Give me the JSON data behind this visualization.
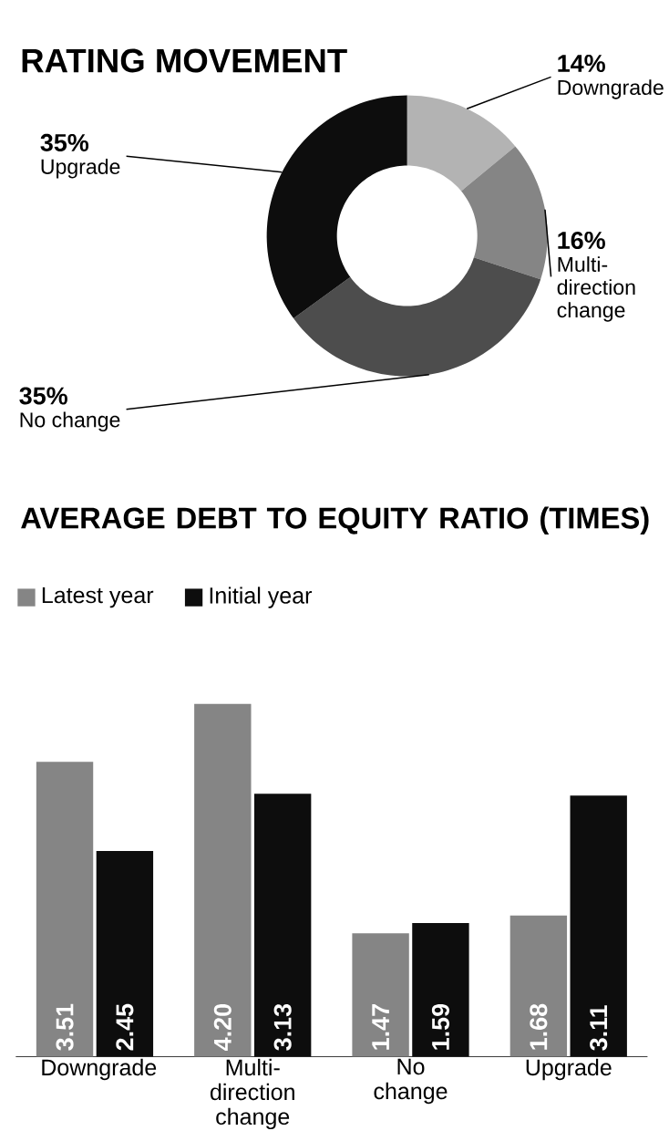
{
  "chart_data": [
    {
      "type": "donut",
      "title": "RATING MOVEMENT",
      "categories": [
        "Downgrade",
        "Multi-direction change",
        "No change",
        "Upgrade"
      ],
      "values": [
        14,
        16,
        35,
        35
      ],
      "value_labels": [
        "14%",
        "16%",
        "35%",
        "35%"
      ],
      "colors": [
        "#b3b3b3",
        "#858585",
        "#4d4d4d",
        "#0d0d0d"
      ]
    },
    {
      "type": "bar",
      "title": "AVERAGE DEBT TO EQUITY RATIO (TIMES)",
      "categories": [
        "Downgrade",
        "Multi-direction change",
        "No change",
        "Upgrade"
      ],
      "series": [
        {
          "name": "Latest year",
          "color": "#858585",
          "values": [
            3.51,
            4.2,
            1.47,
            1.68
          ],
          "value_labels": [
            "3.51",
            "4.20",
            "1.47",
            "1.68"
          ]
        },
        {
          "name": "Initial year",
          "color": "#0d0d0d",
          "values": [
            2.45,
            3.13,
            1.59,
            3.11
          ],
          "value_labels": [
            "2.45",
            "3.13",
            "1.59",
            "3.11"
          ]
        }
      ],
      "tick_labels": "x",
      "legend": "top left"
    }
  ]
}
